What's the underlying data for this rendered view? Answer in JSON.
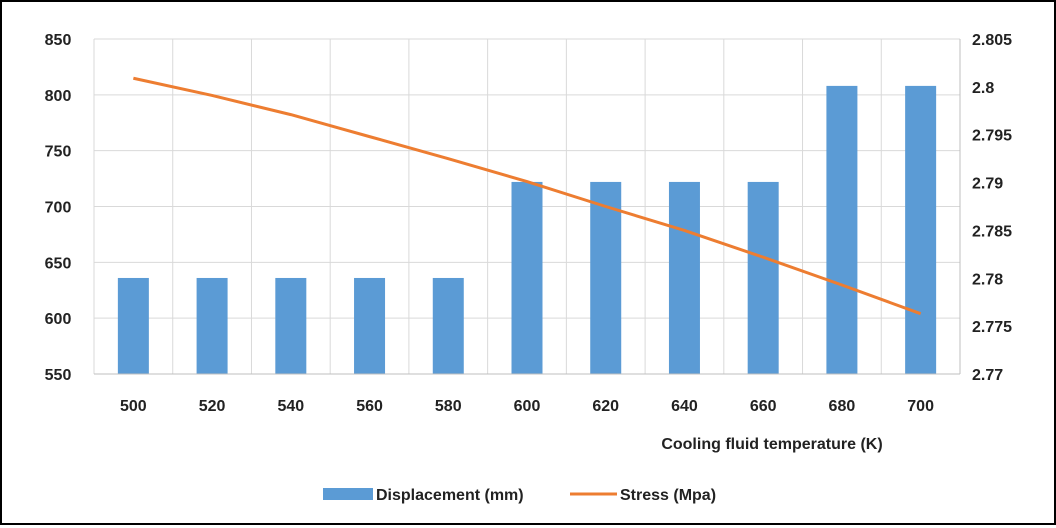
{
  "chart_data": {
    "type": "bar",
    "categories": [
      "500",
      "520",
      "540",
      "560",
      "580",
      "600",
      "620",
      "640",
      "660",
      "680",
      "700"
    ],
    "series": [
      {
        "name": "Displacement (mm)",
        "kind": "bar",
        "axis": "left",
        "color": "#5B9BD5",
        "values": [
          636,
          636,
          636,
          636,
          636,
          722,
          722,
          722,
          722,
          808,
          808
        ]
      },
      {
        "name": "Stress (Mpa)",
        "kind": "line",
        "axis": "right",
        "color": "#ED7D31",
        "values": [
          2.8009,
          2.7991,
          2.7971,
          2.7948,
          2.7925,
          2.7901,
          2.7875,
          2.785,
          2.7822,
          2.7793,
          2.7763
        ]
      }
    ],
    "xlabel": "Cooling fluid temperature (K)",
    "ylim": [
      550,
      850
    ],
    "y_ticks": [
      "550",
      "600",
      "650",
      "700",
      "750",
      "800",
      "850"
    ],
    "y2lim": [
      2.77,
      2.805
    ],
    "y2_ticks": [
      "2.77",
      "2.775",
      "2.78",
      "2.785",
      "2.79",
      "2.795",
      "2.8",
      "2.805"
    ],
    "grid": true,
    "legend_position": "bottom"
  }
}
